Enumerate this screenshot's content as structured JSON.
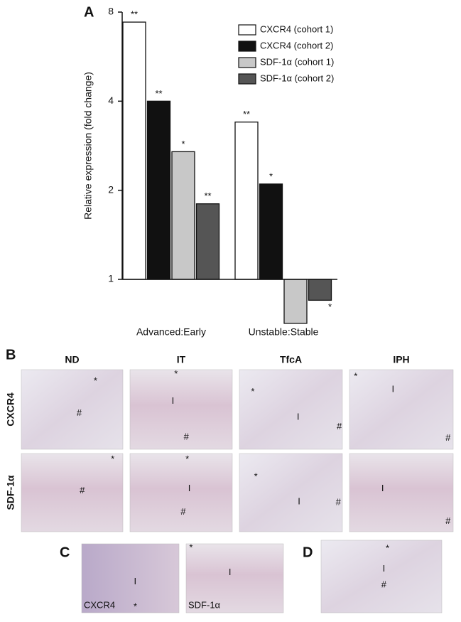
{
  "chart_data": {
    "type": "bar",
    "log_scale": true,
    "log_base": 2,
    "panel_label": "A",
    "y_label": "Relative expression (fold change)",
    "categories": [
      "Advanced:Early",
      "Unstable:Stable"
    ],
    "baseline": 1,
    "series": [
      {
        "name": "CXCR4 (cohort 1)",
        "color": "#ffffff",
        "values": [
          7.4,
          3.4
        ],
        "annotations": [
          "**",
          "**"
        ]
      },
      {
        "name": "CXCR4 (cohort 2)",
        "color": "#111111",
        "values": [
          4.0,
          2.1
        ],
        "annotations": [
          "**",
          "*"
        ]
      },
      {
        "name": "SDF-1α (cohort 1)",
        "color": "#c8c8c8",
        "values": [
          2.7,
          0.71
        ],
        "annotations": [
          "*",
          null
        ]
      },
      {
        "name": "SDF-1α (cohort 2)",
        "color": "#555555",
        "values": [
          1.8,
          0.85
        ],
        "annotations": [
          "**",
          "*"
        ]
      }
    ],
    "ylim": [
      1,
      8
    ],
    "yticks": [
      1,
      2,
      4,
      8
    ],
    "legend": "top-right"
  },
  "panel_b": {
    "label": "B",
    "columns": [
      "ND",
      "IT",
      "TfcA",
      "IPH"
    ],
    "rows": [
      "CXCR4",
      "SDF-1α"
    ],
    "images": [
      [
        [
          "*",
          "#"
        ],
        [
          "*",
          "I",
          "#"
        ],
        [
          "*",
          "I",
          "#"
        ],
        [
          "*",
          "I",
          "#"
        ]
      ],
      [
        [
          "*",
          "#"
        ],
        [
          "*",
          "I",
          "#"
        ],
        [
          "*",
          "I",
          "#"
        ],
        [
          "I",
          "#"
        ]
      ]
    ]
  },
  "panel_c": {
    "label": "C",
    "images": [
      {
        "caption": "CXCR4",
        "marks": [
          "I",
          "*"
        ]
      },
      {
        "caption": "SDF-1α",
        "marks": [
          "*",
          "I"
        ]
      }
    ]
  },
  "panel_d": {
    "label": "D",
    "marks": [
      "*",
      "I",
      "#"
    ]
  }
}
